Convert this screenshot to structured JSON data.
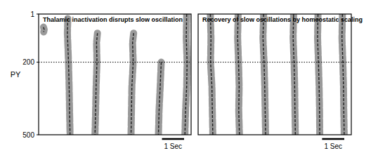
{
  "chart_data": [
    {
      "type": "raster",
      "title": "Thalamic inactivation disrupts slow oscillation",
      "ylabel": "PY",
      "xlim": [
        0,
        6.9
      ],
      "ylim": [
        1,
        500
      ],
      "yticks": [
        1,
        200,
        500
      ],
      "boundary": 200,
      "color": "#9a9a9a",
      "scale_bar": {
        "length": 1,
        "label": "1 Sec"
      },
      "events": [
        {
          "x": [
            0.22,
            0.25,
            0.23
          ],
          "y": [
            55,
            65,
            75
          ]
        },
        {
          "x": [
            1.32,
            1.3,
            1.35,
            1.38,
            1.4,
            1.42
          ],
          "y": [
            20,
            80,
            200,
            300,
            400,
            500
          ]
        },
        {
          "x": [
            2.66,
            2.62,
            2.64,
            2.6,
            2.58,
            2.55
          ],
          "y": [
            80,
            120,
            200,
            300,
            400,
            500
          ]
        },
        {
          "x": [
            4.3,
            4.25,
            4.28,
            4.22,
            4.2,
            4.18
          ],
          "y": [
            80,
            120,
            200,
            300,
            400,
            500
          ]
        },
        {
          "x": [
            5.55,
            5.5,
            5.45,
            5.42
          ],
          "y": [
            200,
            300,
            400,
            500
          ]
        },
        {
          "x": [
            6.7,
            6.68,
            6.72,
            6.7,
            6.65,
            6.62
          ],
          "y": [
            1,
            100,
            200,
            300,
            400,
            500
          ]
        }
      ]
    },
    {
      "type": "raster",
      "title": "Recovery of slow oscillations by homeostatic scaling",
      "xlim": [
        0,
        6.9
      ],
      "ylim": [
        1,
        500
      ],
      "tick_labels": false,
      "boundary": 200,
      "color": "#9a9a9a",
      "scale_bar": {
        "length": 1,
        "label": "1 Sec"
      },
      "events": [
        {
          "x": [
            0.55,
            0.58,
            0.56,
            0.62,
            0.64,
            0.66
          ],
          "y": [
            1,
            100,
            200,
            300,
            400,
            500
          ]
        },
        {
          "x": [
            1.8,
            1.78,
            1.82,
            1.85,
            1.83,
            1.86
          ],
          "y": [
            1,
            100,
            200,
            300,
            400,
            500
          ]
        },
        {
          "x": [
            2.95,
            2.92,
            2.97,
            3.0,
            3.02,
            3.04
          ],
          "y": [
            1,
            100,
            200,
            300,
            400,
            500
          ]
        },
        {
          "x": [
            4.3,
            4.28,
            4.32,
            4.35,
            4.36,
            4.38
          ],
          "y": [
            1,
            100,
            200,
            300,
            400,
            500
          ]
        },
        {
          "x": [
            5.4,
            5.38,
            5.42,
            5.45,
            5.47,
            5.48
          ],
          "y": [
            1,
            100,
            200,
            300,
            400,
            500
          ]
        },
        {
          "x": [
            6.5,
            6.48,
            6.52,
            6.55,
            6.56,
            6.58
          ],
          "y": [
            1,
            100,
            200,
            300,
            400,
            500
          ]
        }
      ]
    }
  ]
}
